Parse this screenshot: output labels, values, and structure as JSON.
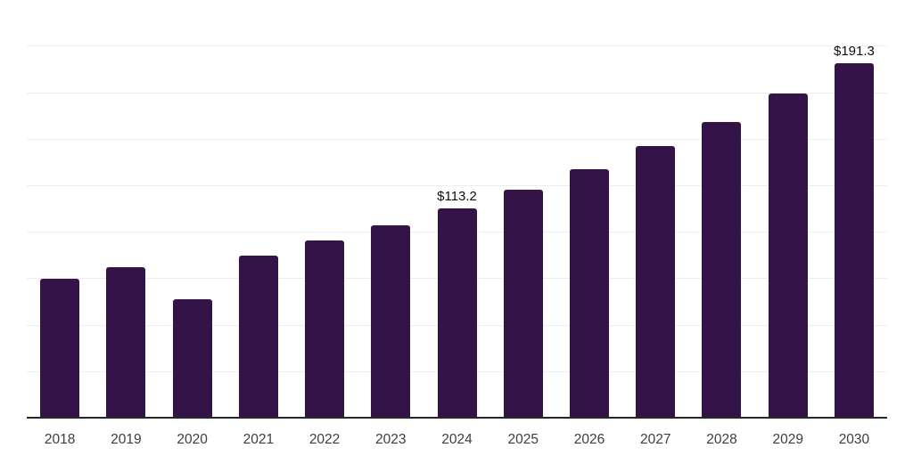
{
  "chart_data": {
    "type": "bar",
    "title": "",
    "xlabel": "",
    "ylabel": "",
    "categories": [
      "2018",
      "2019",
      "2020",
      "2021",
      "2022",
      "2023",
      "2024",
      "2025",
      "2026",
      "2027",
      "2028",
      "2029",
      "2030"
    ],
    "values": [
      75.3,
      81.2,
      64.0,
      87.7,
      95.6,
      104.0,
      113.2,
      123.1,
      134.3,
      146.4,
      159.6,
      175.0,
      191.3
    ],
    "data_labels": [
      "",
      "",
      "",
      "",
      "",
      "",
      "$113.2",
      "",
      "",
      "",
      "",
      "",
      "$191.3"
    ],
    "ylim": [
      0,
      225
    ],
    "gridline_step": 25,
    "grid": true,
    "legend": "none",
    "colors": {
      "bar": "#331348",
      "gridline": "#ededed",
      "axis_line": "#262626",
      "tick_label": "#3d3d3d",
      "data_label": "#0d0d0d",
      "background": "#ffffff"
    }
  }
}
